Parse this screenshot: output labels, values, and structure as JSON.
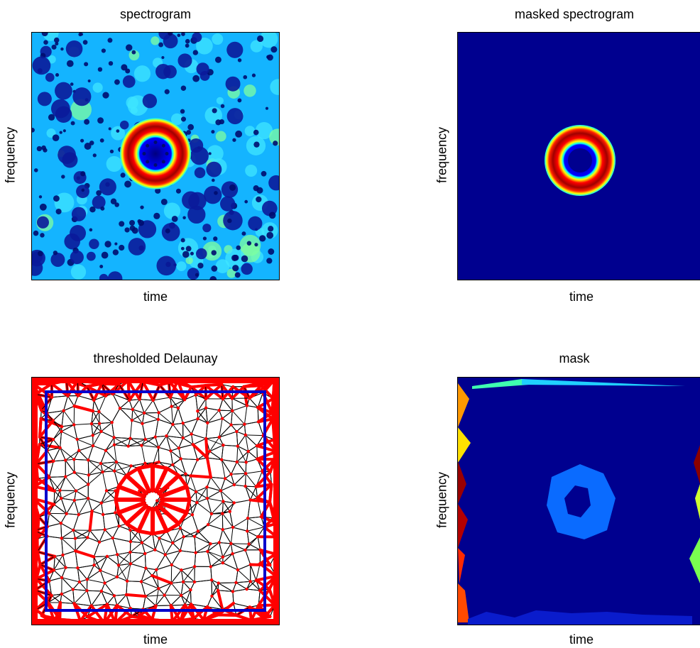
{
  "chart_data": [
    {
      "type": "heatmap",
      "title": "spectrogram",
      "xlabel": "time",
      "ylabel": "frequency",
      "colormap": "jet",
      "ring": {
        "center": [
          0.5,
          0.5
        ],
        "inner_radius": 0.07,
        "outer_radius": 0.14
      },
      "background": "noise"
    },
    {
      "type": "heatmap",
      "title": "masked spectrogram",
      "xlabel": "time",
      "ylabel": "frequency",
      "colormap": "jet",
      "ring": {
        "center": [
          0.5,
          0.5
        ],
        "inner_radius": 0.07,
        "outer_radius": 0.14
      },
      "background": "zero"
    },
    {
      "type": "scatter",
      "title": "thresholded Delaunay",
      "xlabel": "time",
      "ylabel": "frequency",
      "inner_box": [
        0.05,
        0.05,
        0.95,
        0.95
      ],
      "colors": {
        "edges": "#000000",
        "long_edges": "#ff0000",
        "points": "#ff0000",
        "box": "#0000cc"
      }
    },
    {
      "type": "heatmap",
      "title": "mask",
      "xlabel": "time",
      "ylabel": "frequency",
      "colormap": "jet",
      "colors": {
        "background": "#00008f",
        "ring": "#0a6bff"
      }
    }
  ],
  "colors": {
    "jet_dark_blue": "#00007f",
    "jet_blue": "#0000ff",
    "jet_cyan": "#00ffff",
    "jet_yellow": "#ffff00",
    "jet_red": "#ff0000",
    "jet_dark_red": "#7f0000"
  }
}
